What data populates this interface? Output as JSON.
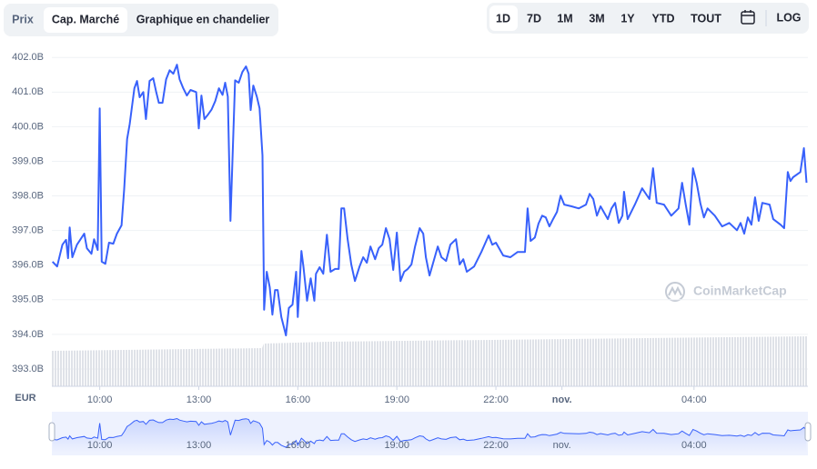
{
  "tabs": [
    "Prix",
    "Cap. Marché",
    "Graphique en chandelier"
  ],
  "ranges": [
    "1D",
    "7D",
    "1M",
    "3M",
    "1Y",
    "YTD",
    "TOUT"
  ],
  "log": "LOG",
  "watermark": "CoinMarketCap",
  "chart_data": {
    "type": "line",
    "currency": "EUR",
    "color": "#3861fb",
    "grid": true,
    "xlim": [
      8.55,
      31.45
    ],
    "xticks": [
      {
        "value": 10,
        "label": "10:00"
      },
      {
        "value": 13,
        "label": "13:00"
      },
      {
        "value": 16,
        "label": "16:00"
      },
      {
        "value": 19,
        "label": "19:00"
      },
      {
        "value": 22,
        "label": "22:00"
      },
      {
        "value": 24,
        "label": "nov."
      },
      {
        "value": 28,
        "label": "04:00"
      }
    ],
    "ylim": [
      392.5,
      402.4
    ],
    "yticks": [
      {
        "value": 393,
        "label": "393.0B"
      },
      {
        "value": 394,
        "label": "394.0B"
      },
      {
        "value": 395,
        "label": "395.0B"
      },
      {
        "value": 396,
        "label": "396.0B"
      },
      {
        "value": 397,
        "label": "397.0B"
      },
      {
        "value": 398,
        "label": "398.0B"
      },
      {
        "value": 399,
        "label": "399.0B"
      },
      {
        "value": 400,
        "label": "400.0B"
      },
      {
        "value": 401,
        "label": "401.0B"
      },
      {
        "value": 402,
        "label": "402.0B"
      }
    ],
    "x": [
      8.57,
      8.71,
      8.87,
      8.98,
      9.04,
      9.09,
      9.17,
      9.31,
      9.53,
      9.61,
      9.75,
      9.83,
      9.94,
      10.0,
      10.06,
      10.17,
      10.28,
      10.41,
      10.52,
      10.66,
      10.74,
      10.83,
      10.91,
      11.05,
      11.13,
      11.21,
      11.32,
      11.4,
      11.51,
      11.62,
      11.71,
      11.79,
      11.9,
      12.01,
      12.12,
      12.23,
      12.34,
      12.42,
      12.53,
      12.64,
      12.75,
      12.92,
      13.0,
      13.08,
      13.17,
      13.28,
      13.39,
      13.5,
      13.61,
      13.72,
      13.8,
      13.88,
      13.96,
      14.1,
      14.21,
      14.32,
      14.43,
      14.51,
      14.57,
      14.65,
      14.76,
      14.84,
      14.93,
      14.98,
      15.06,
      15.15,
      15.23,
      15.31,
      15.39,
      15.5,
      15.64,
      15.73,
      15.84,
      15.95,
      16.0,
      16.11,
      16.17,
      16.28,
      16.39,
      16.5,
      16.55,
      16.66,
      16.77,
      16.88,
      16.99,
      17.13,
      17.24,
      17.32,
      17.4,
      17.51,
      17.62,
      17.73,
      17.87,
      17.98,
      18.09,
      18.2,
      18.34,
      18.45,
      18.56,
      18.67,
      18.78,
      18.89,
      19.0,
      19.11,
      19.22,
      19.33,
      19.44,
      19.55,
      19.69,
      19.8,
      19.88,
      19.99,
      20.1,
      20.24,
      20.35,
      20.49,
      20.62,
      20.79,
      20.9,
      21.01,
      21.12,
      21.34,
      21.56,
      21.78,
      21.89,
      22.0,
      22.22,
      22.44,
      22.66,
      22.88,
      22.96,
      23.05,
      23.18,
      23.29,
      23.4,
      23.51,
      23.62,
      23.73,
      23.85,
      23.96,
      24.07,
      24.29,
      24.51,
      24.73,
      24.84,
      24.95,
      25.06,
      25.17,
      25.39,
      25.5,
      25.61,
      25.72,
      25.83,
      25.88,
      25.99,
      26.21,
      26.43,
      26.65,
      26.76,
      26.87,
      27.09,
      27.31,
      27.53,
      27.64,
      27.75,
      27.86,
      27.97,
      28.08,
      28.19,
      28.3,
      28.41,
      28.63,
      28.85,
      29.07,
      29.3,
      29.41,
      29.52,
      29.63,
      29.74,
      29.85,
      29.96,
      30.07,
      30.29,
      30.4,
      30.62,
      30.73,
      30.84,
      30.92,
      31.0,
      31.22,
      31.33,
      31.41
    ],
    "values": [
      396.1,
      395.96,
      396.59,
      396.73,
      396.2,
      397.09,
      396.23,
      396.59,
      396.91,
      396.49,
      396.33,
      396.75,
      396.44,
      400.53,
      396.1,
      396.04,
      396.65,
      396.62,
      396.91,
      397.15,
      398.2,
      399.64,
      400.08,
      401.11,
      401.32,
      400.85,
      401.0,
      400.22,
      401.32,
      401.4,
      401.0,
      400.69,
      400.69,
      401.37,
      401.63,
      401.53,
      401.79,
      401.37,
      401.11,
      400.9,
      401.06,
      401.0,
      399.95,
      400.9,
      400.22,
      400.35,
      400.5,
      400.74,
      401.11,
      400.92,
      401.27,
      400.87,
      397.28,
      401.34,
      401.27,
      401.58,
      401.74,
      401.53,
      400.48,
      401.19,
      400.87,
      400.53,
      399.17,
      394.71,
      395.81,
      395.36,
      394.57,
      395.28,
      395.28,
      394.5,
      393.97,
      394.76,
      394.86,
      395.81,
      394.5,
      396.41,
      395.96,
      394.97,
      395.62,
      394.97,
      395.75,
      395.94,
      395.75,
      396.88,
      395.81,
      395.89,
      395.89,
      397.64,
      397.64,
      396.75,
      396.02,
      395.54,
      395.96,
      396.23,
      396.07,
      396.54,
      396.17,
      396.49,
      396.59,
      397.07,
      396.75,
      395.86,
      396.94,
      395.54,
      395.81,
      395.89,
      396.02,
      396.54,
      397.07,
      396.91,
      396.23,
      395.7,
      396.07,
      396.54,
      396.23,
      396.12,
      396.59,
      396.75,
      396.02,
      396.17,
      395.81,
      395.96,
      396.38,
      396.86,
      396.59,
      396.65,
      396.28,
      396.23,
      396.38,
      396.38,
      397.64,
      396.7,
      396.8,
      397.2,
      397.43,
      397.38,
      397.12,
      397.33,
      397.54,
      398.01,
      397.75,
      397.7,
      397.64,
      397.75,
      398.06,
      397.91,
      397.43,
      397.7,
      397.33,
      397.64,
      397.8,
      397.22,
      397.43,
      398.12,
      397.33,
      397.75,
      398.22,
      397.91,
      398.8,
      397.8,
      397.75,
      397.43,
      397.64,
      398.38,
      397.75,
      397.17,
      398.8,
      398.38,
      397.8,
      397.38,
      397.64,
      397.43,
      397.12,
      397.22,
      397.01,
      397.22,
      396.91,
      397.38,
      397.17,
      397.96,
      397.28,
      397.8,
      397.75,
      397.33,
      397.17,
      397.07,
      398.69,
      398.43,
      398.54,
      398.69,
      399.38,
      398.38
    ]
  }
}
